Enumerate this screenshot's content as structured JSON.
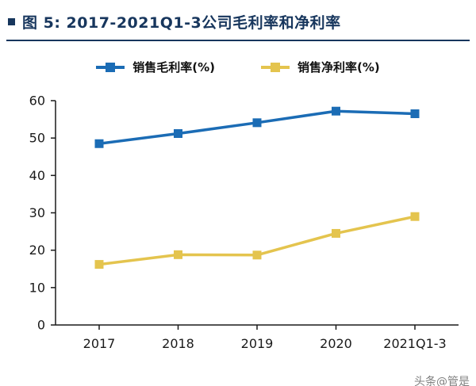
{
  "header": {
    "title": "图  5:   2017-2021Q1-3公司毛利率和净利率"
  },
  "chart_data": {
    "type": "line",
    "categories": [
      "2017",
      "2018",
      "2019",
      "2020",
      "2021Q1-3"
    ],
    "series": [
      {
        "name": "销售毛利率(%)",
        "color": "#1B6CB5",
        "values": [
          48.5,
          51.2,
          54.1,
          57.2,
          56.5
        ]
      },
      {
        "name": "销售净利率(%)",
        "color": "#E4C44E",
        "values": [
          16.2,
          18.8,
          18.7,
          24.5,
          29.0
        ]
      }
    ],
    "title": "2017-2021Q1-3公司毛利率和净利率",
    "xlabel": "",
    "ylabel": "",
    "ylim": [
      0,
      60
    ],
    "ytick_step": 10,
    "grid": false,
    "legend_position": "top"
  },
  "watermark": "头条@管是",
  "colors": {
    "title": "#17365D",
    "axis": "#1a1a1a",
    "watermark": "#808080"
  }
}
